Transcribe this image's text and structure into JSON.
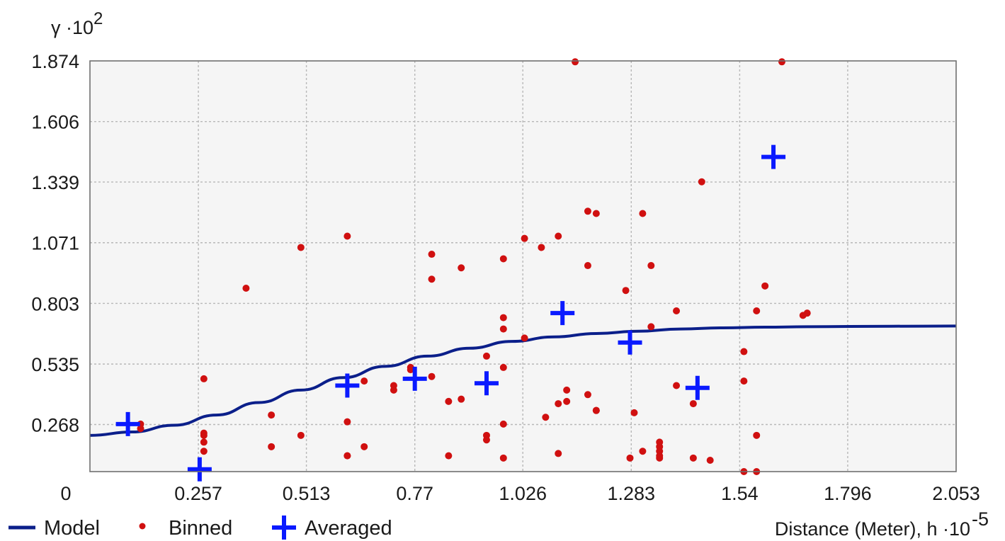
{
  "chart_data": {
    "type": "scatter",
    "y_axis_title": "γ ·10",
    "y_axis_title_exp": "2",
    "x_axis_title": "Distance (Meter), h ·10",
    "x_axis_title_exp": "-5",
    "xlim": [
      0,
      2.053
    ],
    "ylim": [
      0.06,
      1.874
    ],
    "x_ticks": [
      "0",
      "0.257",
      "0.513",
      "0.77",
      "1.026",
      "1.283",
      "1.54",
      "1.796",
      "2.053"
    ],
    "x_tick_values": [
      0,
      0.257,
      0.513,
      0.77,
      1.026,
      1.283,
      1.54,
      1.796,
      2.053
    ],
    "y_ticks": [
      "0.268",
      "0.535",
      "0.803",
      "1.071",
      "1.339",
      "1.606",
      "1.874"
    ],
    "y_tick_values": [
      0.268,
      0.535,
      0.803,
      1.071,
      1.339,
      1.606,
      1.874
    ],
    "grid": true,
    "legend_position": "bottom",
    "colors": {
      "model": "#0b1f8a",
      "binned": "#d01010",
      "averaged": "#0a1aff",
      "plot_bg": "#f5f5f5",
      "frame": "#707070"
    },
    "series": [
      {
        "name": "Model",
        "type": "line",
        "x": [
          0,
          0.1,
          0.2,
          0.3,
          0.4,
          0.5,
          0.6,
          0.7,
          0.8,
          0.9,
          1.0,
          1.1,
          1.2,
          1.3,
          1.4,
          1.5,
          1.6,
          1.7,
          1.8,
          1.9,
          2.053
        ],
        "y": [
          0.22,
          0.235,
          0.265,
          0.31,
          0.365,
          0.42,
          0.475,
          0.525,
          0.57,
          0.605,
          0.635,
          0.655,
          0.67,
          0.68,
          0.69,
          0.695,
          0.698,
          0.7,
          0.701,
          0.702,
          0.703
        ]
      },
      {
        "name": "Binned",
        "type": "scatter",
        "x": [
          0.12,
          0.12,
          0.27,
          0.27,
          0.27,
          0.27,
          0.27,
          0.37,
          0.43,
          0.43,
          0.5,
          0.5,
          0.61,
          0.61,
          0.61,
          0.61,
          0.65,
          0.65,
          0.72,
          0.72,
          0.76,
          0.76,
          0.81,
          0.81,
          0.81,
          0.85,
          0.85,
          0.88,
          0.88,
          0.94,
          0.94,
          0.94,
          0.98,
          0.98,
          0.98,
          0.98,
          0.98,
          0.98,
          1.03,
          1.03,
          1.07,
          1.08,
          1.11,
          1.11,
          1.11,
          1.13,
          1.13,
          1.15,
          1.18,
          1.18,
          1.18,
          1.2,
          1.2,
          1.2,
          1.27,
          1.28,
          1.29,
          1.31,
          1.31,
          1.33,
          1.33,
          1.35,
          1.35,
          1.35,
          1.35,
          1.35,
          1.39,
          1.39,
          1.43,
          1.43,
          1.45,
          1.47,
          1.55,
          1.55,
          1.55,
          1.58,
          1.58,
          1.58,
          1.6,
          1.64,
          1.69,
          1.7
        ],
        "y": [
          0.27,
          0.25,
          0.47,
          0.23,
          0.22,
          0.19,
          0.15,
          0.87,
          0.31,
          0.17,
          1.05,
          0.22,
          1.1,
          0.28,
          0.13,
          0.13,
          0.46,
          0.17,
          0.44,
          0.42,
          0.52,
          0.51,
          1.02,
          0.91,
          0.48,
          0.37,
          0.13,
          0.96,
          0.38,
          0.57,
          0.22,
          0.2,
          1.0,
          0.74,
          0.69,
          0.52,
          0.27,
          0.12,
          1.09,
          0.65,
          1.05,
          0.3,
          1.1,
          0.36,
          0.14,
          0.37,
          0.42,
          1.87,
          1.21,
          0.97,
          0.4,
          1.2,
          0.33,
          0.33,
          0.86,
          0.12,
          0.32,
          1.2,
          0.15,
          0.97,
          0.7,
          0.19,
          0.17,
          0.15,
          0.13,
          0.12,
          0.77,
          0.44,
          0.36,
          0.12,
          1.34,
          0.11,
          0.59,
          0.46,
          0.06,
          0.77,
          0.22,
          0.06,
          0.88,
          1.87,
          0.75,
          0.76
        ]
      },
      {
        "name": "Averaged",
        "type": "scatter",
        "x": [
          0.09,
          0.26,
          0.61,
          0.77,
          0.94,
          1.12,
          1.28,
          1.44,
          1.62
        ],
        "y": [
          0.27,
          0.07,
          0.44,
          0.47,
          0.45,
          0.76,
          0.63,
          0.43,
          1.45
        ]
      }
    ]
  }
}
